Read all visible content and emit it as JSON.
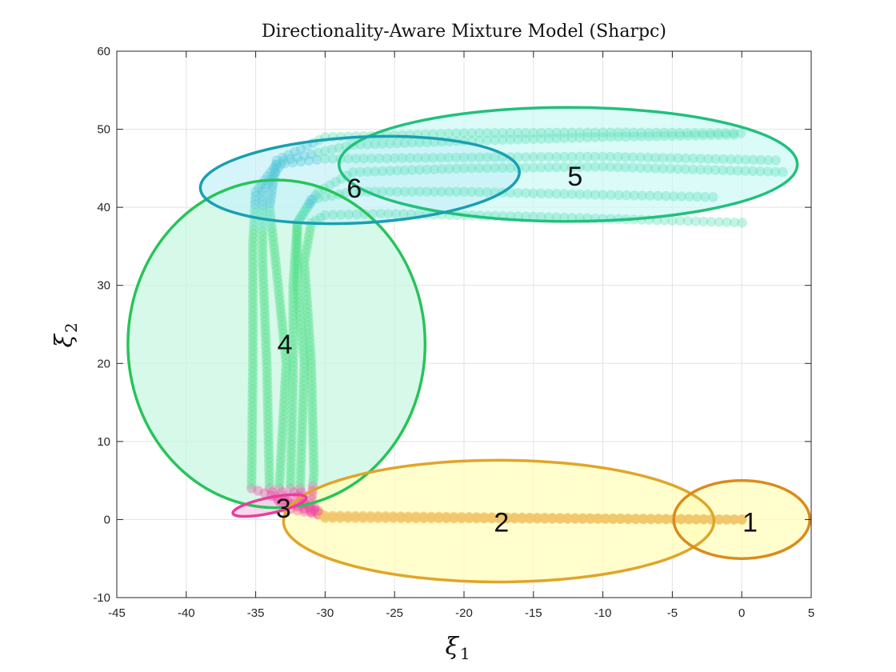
{
  "chart_data": {
    "type": "scatter",
    "title": "Directionality-Aware Mixture Model (Sharpc)",
    "xlabel": "ξ",
    "xlabel_sub": "1",
    "ylabel": "ξ",
    "ylabel_sub": "2",
    "xlim": [
      -45,
      5
    ],
    "ylim": [
      -10,
      60
    ],
    "xticks": [
      -45,
      -40,
      -35,
      -30,
      -25,
      -20,
      -15,
      -10,
      -5,
      0,
      5
    ],
    "yticks": [
      -10,
      0,
      10,
      20,
      30,
      40,
      50,
      60
    ],
    "grid": true,
    "components": [
      {
        "label": "1",
        "center": [
          0.0,
          0.0
        ],
        "rx": 4.9,
        "ry": 5.0,
        "angle_deg": 0,
        "edge_color": "#d98c1f",
        "fill_color": "#fffdb8"
      },
      {
        "label": "2",
        "center": [
          -17.5,
          -0.2
        ],
        "rx": 15.5,
        "ry": 7.8,
        "angle_deg": 0,
        "edge_color": "#e0a52a",
        "fill_color": "#fffdb8"
      },
      {
        "label": "3",
        "center": [
          -34.0,
          1.8
        ],
        "rx": 2.7,
        "ry": 1.0,
        "angle_deg": -12,
        "edge_color": "#e83e9a",
        "fill_color": "#f6c8e6"
      },
      {
        "label": "4",
        "center": [
          -33.5,
          22.5
        ],
        "rx": 10.7,
        "ry": 21.0,
        "angle_deg": 0,
        "edge_color": "#28c45a",
        "fill_color": "#c8f7e2"
      },
      {
        "label": "5",
        "center": [
          -12.5,
          45.5
        ],
        "rx": 16.5,
        "ry": 7.3,
        "angle_deg": 0,
        "edge_color": "#22c07c",
        "fill_color": "#ccfaf5"
      },
      {
        "label": "6",
        "center": [
          -27.5,
          43.5
        ],
        "rx": 11.5,
        "ry": 5.5,
        "angle_deg": -3,
        "edge_color": "#1a9fb0",
        "fill_color": "#c6f1f8"
      }
    ],
    "label_positions": [
      {
        "label": "1",
        "x": 0.6,
        "y": -0.3
      },
      {
        "label": "2",
        "x": -17.3,
        "y": -0.3
      },
      {
        "label": "3",
        "x": -33.0,
        "y": 1.5
      },
      {
        "label": "4",
        "x": -32.9,
        "y": 22.5
      },
      {
        "label": "5",
        "x": -12.0,
        "y": 44.0
      },
      {
        "label": "6",
        "x": -27.9,
        "y": 42.5
      }
    ],
    "colors": {
      "orange": "#f2c46a",
      "pink": "#f04fa3",
      "green": "#55e08c",
      "aqua": "#5fe0b8",
      "cyan": "#56c8d8"
    },
    "trajectories": [
      {
        "name": "",
        "points": [
          [
            0,
            0
          ],
          [
            -30,
            0.5
          ],
          [
            -32,
            1.8
          ],
          [
            -35.3,
            4
          ],
          [
            -35.2,
            20
          ],
          [
            -35.2,
            35
          ],
          [
            -35,
            42
          ],
          [
            -33.5,
            45.5
          ],
          [
            -30,
            46.2
          ],
          [
            -20,
            46.4
          ],
          [
            -10,
            46.5
          ],
          [
            3,
            46
          ]
        ]
      },
      {
        "name": "",
        "points": [
          [
            0,
            0
          ],
          [
            -30,
            0.5
          ],
          [
            -33,
            1.5
          ],
          [
            -34,
            4
          ],
          [
            -34.2,
            20
          ],
          [
            -34.5,
            33
          ],
          [
            -34.5,
            42
          ],
          [
            -33,
            46
          ],
          [
            -28,
            48
          ],
          [
            -20,
            48.5
          ],
          [
            -10,
            49
          ],
          [
            0,
            49.3
          ]
        ]
      },
      {
        "name": "",
        "points": [
          [
            0,
            0
          ],
          [
            -30,
            0.3
          ],
          [
            -32.5,
            2
          ],
          [
            -33.3,
            4
          ],
          [
            -32.8,
            20
          ],
          [
            -33.5,
            32
          ],
          [
            -34,
            40
          ],
          [
            -33.5,
            46
          ],
          [
            -30,
            49
          ],
          [
            -20,
            49.5
          ],
          [
            -10,
            49.6
          ],
          [
            0.5,
            49.5
          ]
        ]
      },
      {
        "name": "",
        "points": [
          [
            0,
            0
          ],
          [
            -30,
            0.4
          ],
          [
            -31.5,
            2
          ],
          [
            -32.5,
            4
          ],
          [
            -32.3,
            18
          ],
          [
            -32.3,
            30
          ],
          [
            -32,
            38
          ],
          [
            -30.5,
            42
          ],
          [
            -28,
            44.5
          ],
          [
            -20,
            45
          ],
          [
            -10,
            45.2
          ],
          [
            3.5,
            44.5
          ]
        ]
      },
      {
        "name": "",
        "points": [
          [
            0,
            0
          ],
          [
            -30,
            0.2
          ],
          [
            -31.5,
            2
          ],
          [
            -31.8,
            4
          ],
          [
            -31.5,
            20
          ],
          [
            -32,
            30
          ],
          [
            -32,
            38
          ],
          [
            -31,
            41
          ],
          [
            -28,
            42
          ],
          [
            -20,
            42
          ],
          [
            -10,
            41.6
          ],
          [
            -1.5,
            41.3
          ]
        ]
      },
      {
        "name": "",
        "points": [
          [
            0,
            0
          ],
          [
            -30,
            0.2
          ],
          [
            -31,
            2
          ],
          [
            -30.8,
            6
          ],
          [
            -31,
            20
          ],
          [
            -31.5,
            33
          ],
          [
            -31,
            38
          ],
          [
            -30,
            39
          ],
          [
            -26,
            39.2
          ],
          [
            -15,
            38.8
          ],
          [
            -5,
            38.3
          ],
          [
            0.6,
            38
          ]
        ]
      }
    ]
  }
}
